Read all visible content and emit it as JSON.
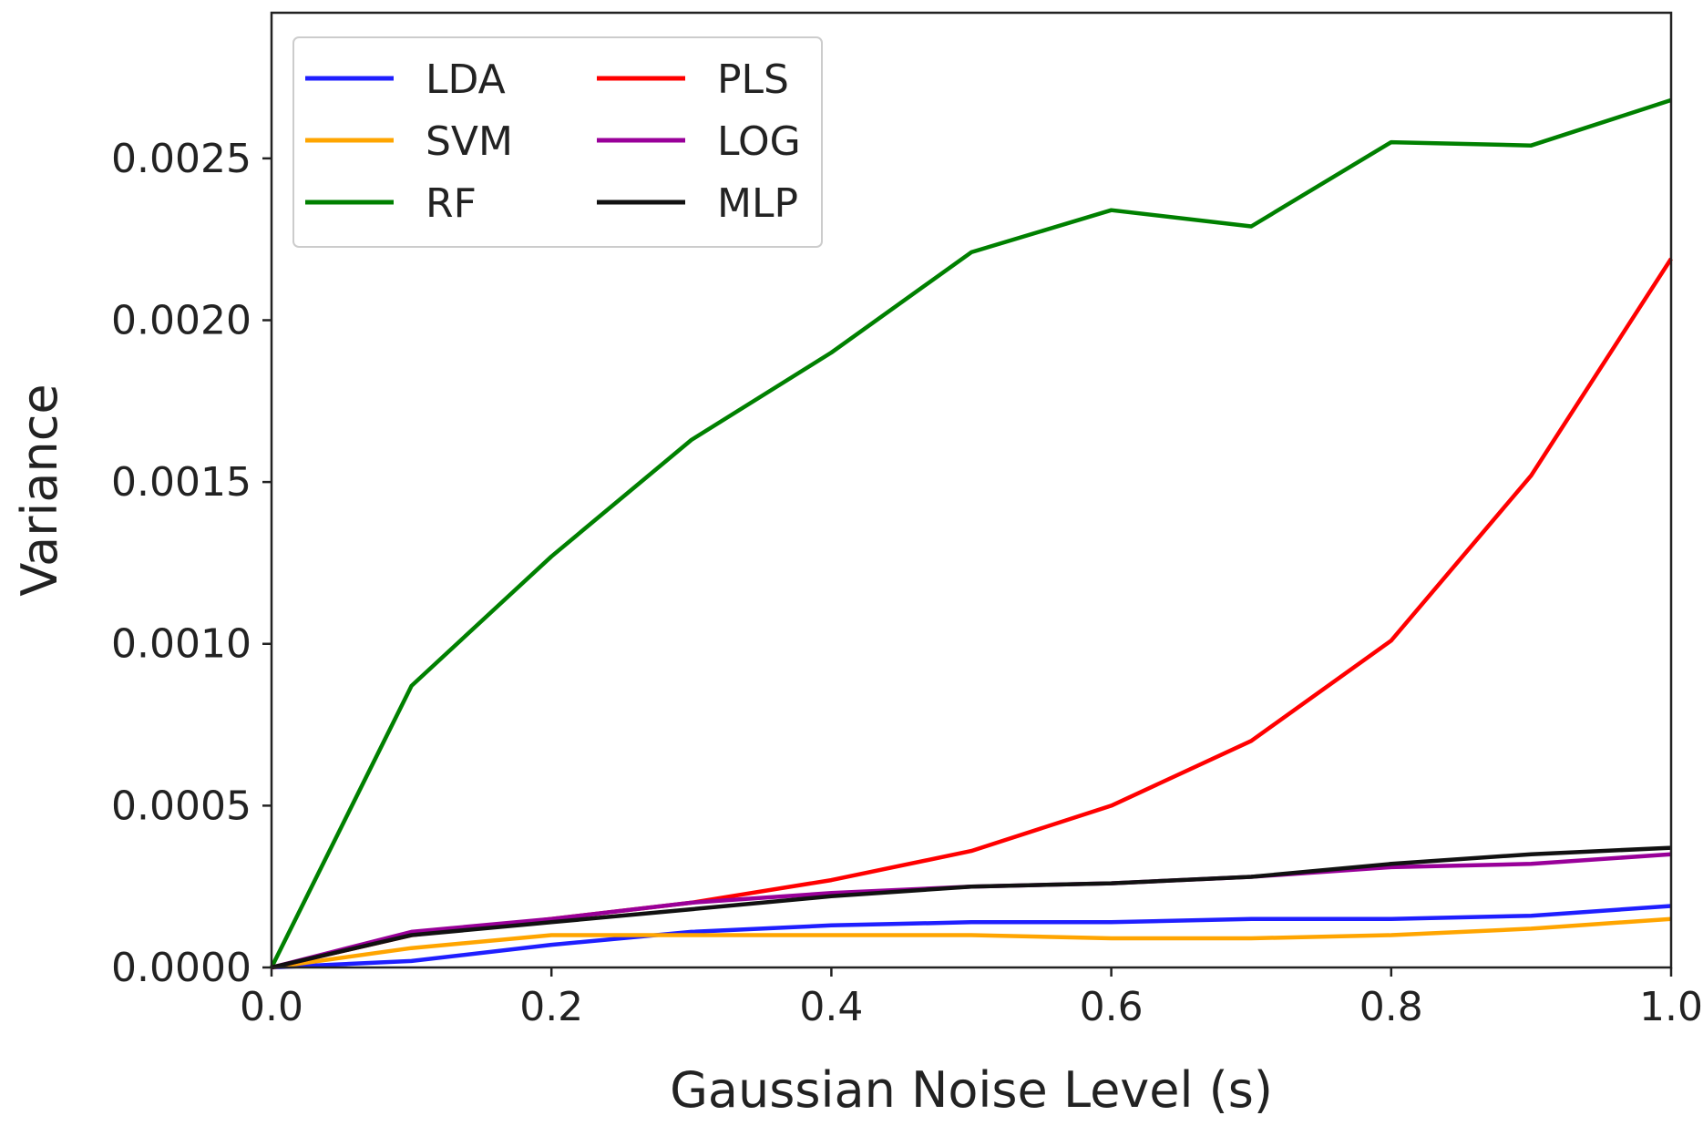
{
  "chart_data": {
    "type": "line",
    "title": "",
    "xlabel": "Gaussian Noise Level (s)",
    "ylabel": "Variance",
    "xlim": [
      0.0,
      1.0
    ],
    "ylim": [
      0.0,
      0.00295
    ],
    "x": [
      0.0,
      0.1,
      0.2,
      0.3,
      0.4,
      0.5,
      0.6,
      0.7,
      0.8,
      0.9,
      1.0
    ],
    "x_ticks": [
      0.0,
      0.2,
      0.4,
      0.6,
      0.8,
      1.0
    ],
    "x_tick_labels": [
      "0.0",
      "0.2",
      "0.4",
      "0.6",
      "0.8",
      "1.0"
    ],
    "y_ticks": [
      0.0,
      0.0005,
      0.001,
      0.0015,
      0.002,
      0.0025
    ],
    "y_tick_labels": [
      "0.0000",
      "0.0005",
      "0.0010",
      "0.0015",
      "0.0020",
      "0.0025"
    ],
    "grid": false,
    "legend_position": "top-left",
    "legend_columns": 2,
    "series": [
      {
        "name": "LDA",
        "color": "#1f1fff",
        "values": [
          0.0,
          2e-05,
          7e-05,
          0.00011,
          0.00013,
          0.00014,
          0.00014,
          0.00015,
          0.00015,
          0.00016,
          0.00019
        ]
      },
      {
        "name": "SVM",
        "color": "#ffa500",
        "values": [
          0.0,
          6e-05,
          0.0001,
          0.0001,
          0.0001,
          0.0001,
          9e-05,
          9e-05,
          0.0001,
          0.00012,
          0.00015
        ]
      },
      {
        "name": "RF",
        "color": "#008000",
        "values": [
          0.0,
          0.00087,
          0.00127,
          0.00163,
          0.0019,
          0.00221,
          0.00234,
          0.00229,
          0.00255,
          0.00254,
          0.00268
        ]
      },
      {
        "name": "PLS",
        "color": "#ff0000",
        "values": [
          0.0,
          0.0001,
          0.00015,
          0.0002,
          0.00027,
          0.00036,
          0.0005,
          0.0007,
          0.00101,
          0.00152,
          0.00219
        ]
      },
      {
        "name": "LOG",
        "color": "#990099",
        "values": [
          0.0,
          0.00011,
          0.00015,
          0.0002,
          0.00023,
          0.00025,
          0.00026,
          0.00028,
          0.00031,
          0.00032,
          0.00035
        ]
      },
      {
        "name": "MLP",
        "color": "#111111",
        "values": [
          0.0,
          0.0001,
          0.00014,
          0.00018,
          0.00022,
          0.00025,
          0.00026,
          0.00028,
          0.00032,
          0.00035,
          0.00037
        ]
      }
    ]
  }
}
